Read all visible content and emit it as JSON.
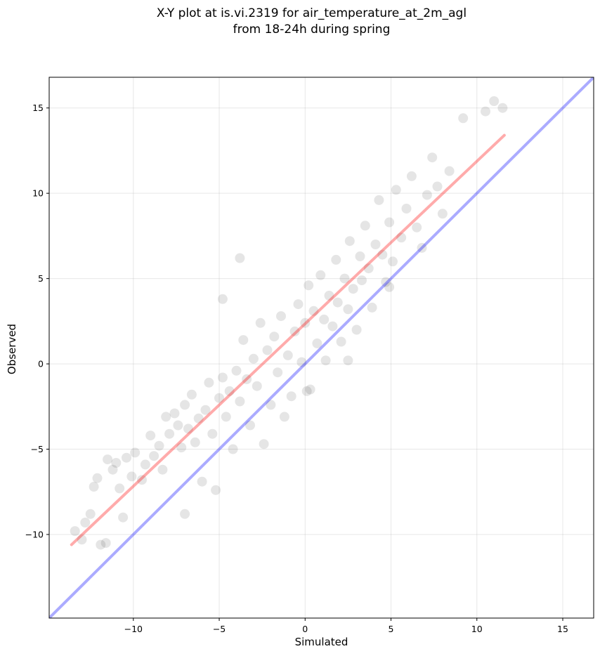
{
  "chart_data": {
    "type": "scatter",
    "title": "X-Y plot at is.vi.2319 for air_temperature_at_2m_agl",
    "subtitle": "from 18-24h during spring",
    "xlabel": "Simulated",
    "ylabel": "Observed",
    "xlim": [
      -14.9,
      16.8
    ],
    "ylim": [
      -14.9,
      16.8
    ],
    "xticks": [
      -10,
      -5,
      0,
      5,
      10,
      15
    ],
    "yticks": [
      -10,
      -5,
      0,
      5,
      10,
      15
    ],
    "tick_labels": [
      "−10",
      "−5",
      "0",
      "5",
      "10",
      "15"
    ],
    "grid": true,
    "reference_line": {
      "color": "#0000ff",
      "x": [
        -14.9,
        16.8
      ],
      "y": [
        -14.9,
        16.8
      ]
    },
    "fit_line": {
      "color": "#ff0000",
      "x": [
        -13.6,
        11.6
      ],
      "y": [
        -10.6,
        13.4
      ]
    },
    "point_color": "#000000",
    "points": [
      [
        -13.4,
        -9.8
      ],
      [
        -13.0,
        -10.3
      ],
      [
        -12.8,
        -9.3
      ],
      [
        -12.5,
        -8.8
      ],
      [
        -12.3,
        -7.2
      ],
      [
        -12.1,
        -6.7
      ],
      [
        -11.9,
        -10.6
      ],
      [
        -11.6,
        -10.5
      ],
      [
        -11.5,
        -5.6
      ],
      [
        -11.2,
        -6.2
      ],
      [
        -11.0,
        -5.8
      ],
      [
        -10.8,
        -7.3
      ],
      [
        -10.6,
        -9.0
      ],
      [
        -10.4,
        -5.5
      ],
      [
        -10.1,
        -6.6
      ],
      [
        -9.9,
        -5.2
      ],
      [
        -9.5,
        -6.8
      ],
      [
        -9.3,
        -5.9
      ],
      [
        -9.0,
        -4.2
      ],
      [
        -8.8,
        -5.4
      ],
      [
        -8.5,
        -4.8
      ],
      [
        -8.3,
        -6.2
      ],
      [
        -8.1,
        -3.1
      ],
      [
        -7.9,
        -4.1
      ],
      [
        -7.6,
        -2.9
      ],
      [
        -7.4,
        -3.6
      ],
      [
        -7.2,
        -4.9
      ],
      [
        -7.0,
        -2.4
      ],
      [
        -6.8,
        -3.8
      ],
      [
        -6.6,
        -1.8
      ],
      [
        -6.4,
        -4.6
      ],
      [
        -6.2,
        -3.2
      ],
      [
        -6.0,
        -6.9
      ],
      [
        -5.8,
        -2.7
      ],
      [
        -5.6,
        -1.1
      ],
      [
        -5.4,
        -4.1
      ],
      [
        -5.2,
        -7.4
      ],
      [
        -5.0,
        -2.0
      ],
      [
        -4.8,
        -0.8
      ],
      [
        -4.6,
        -3.1
      ],
      [
        -4.4,
        -1.6
      ],
      [
        -4.2,
        -5.0
      ],
      [
        -4.0,
        -0.4
      ],
      [
        -3.8,
        -2.2
      ],
      [
        -3.6,
        1.4
      ],
      [
        -3.4,
        -0.9
      ],
      [
        -3.2,
        -3.6
      ],
      [
        -3.0,
        0.3
      ],
      [
        -2.8,
        -1.3
      ],
      [
        -2.6,
        2.4
      ],
      [
        -2.4,
        -4.7
      ],
      [
        -2.2,
        0.8
      ],
      [
        -2.0,
        -2.4
      ],
      [
        -1.8,
        1.6
      ],
      [
        -1.6,
        -0.5
      ],
      [
        -1.4,
        2.8
      ],
      [
        -1.2,
        -3.1
      ],
      [
        -1.0,
        0.5
      ],
      [
        -0.8,
        -1.9
      ],
      [
        -0.6,
        1.9
      ],
      [
        -0.4,
        3.5
      ],
      [
        -0.2,
        0.1
      ],
      [
        0.0,
        2.4
      ],
      [
        0.2,
        4.6
      ],
      [
        0.3,
        -1.5
      ],
      [
        0.5,
        3.1
      ],
      [
        0.7,
        1.2
      ],
      [
        0.9,
        5.2
      ],
      [
        1.1,
        2.6
      ],
      [
        1.2,
        0.2
      ],
      [
        1.4,
        4.0
      ],
      [
        1.6,
        2.2
      ],
      [
        1.8,
        6.1
      ],
      [
        1.9,
        3.6
      ],
      [
        2.1,
        1.3
      ],
      [
        2.3,
        5.0
      ],
      [
        2.5,
        3.2
      ],
      [
        2.6,
        7.2
      ],
      [
        2.8,
        4.4
      ],
      [
        3.0,
        2.0
      ],
      [
        3.2,
        6.3
      ],
      [
        3.3,
        4.9
      ],
      [
        3.5,
        8.1
      ],
      [
        3.7,
        5.6
      ],
      [
        3.9,
        3.3
      ],
      [
        4.1,
        7.0
      ],
      [
        4.3,
        9.6
      ],
      [
        4.5,
        6.4
      ],
      [
        4.7,
        4.8
      ],
      [
        4.9,
        8.3
      ],
      [
        5.1,
        6.0
      ],
      [
        5.3,
        10.2
      ],
      [
        5.6,
        7.4
      ],
      [
        5.9,
        9.1
      ],
      [
        6.2,
        11.0
      ],
      [
        6.5,
        8.0
      ],
      [
        6.8,
        6.8
      ],
      [
        7.1,
        9.9
      ],
      [
        7.4,
        12.1
      ],
      [
        7.7,
        10.4
      ],
      [
        8.0,
        8.8
      ],
      [
        8.4,
        11.3
      ],
      [
        9.2,
        14.4
      ],
      [
        10.5,
        14.8
      ],
      [
        11.0,
        15.4
      ],
      [
        11.5,
        15.0
      ],
      [
        -3.8,
        6.2
      ],
      [
        -4.8,
        3.8
      ],
      [
        2.5,
        0.2
      ],
      [
        0.1,
        -1.6
      ],
      [
        4.9,
        4.5
      ],
      [
        -7.0,
        -8.8
      ]
    ]
  }
}
